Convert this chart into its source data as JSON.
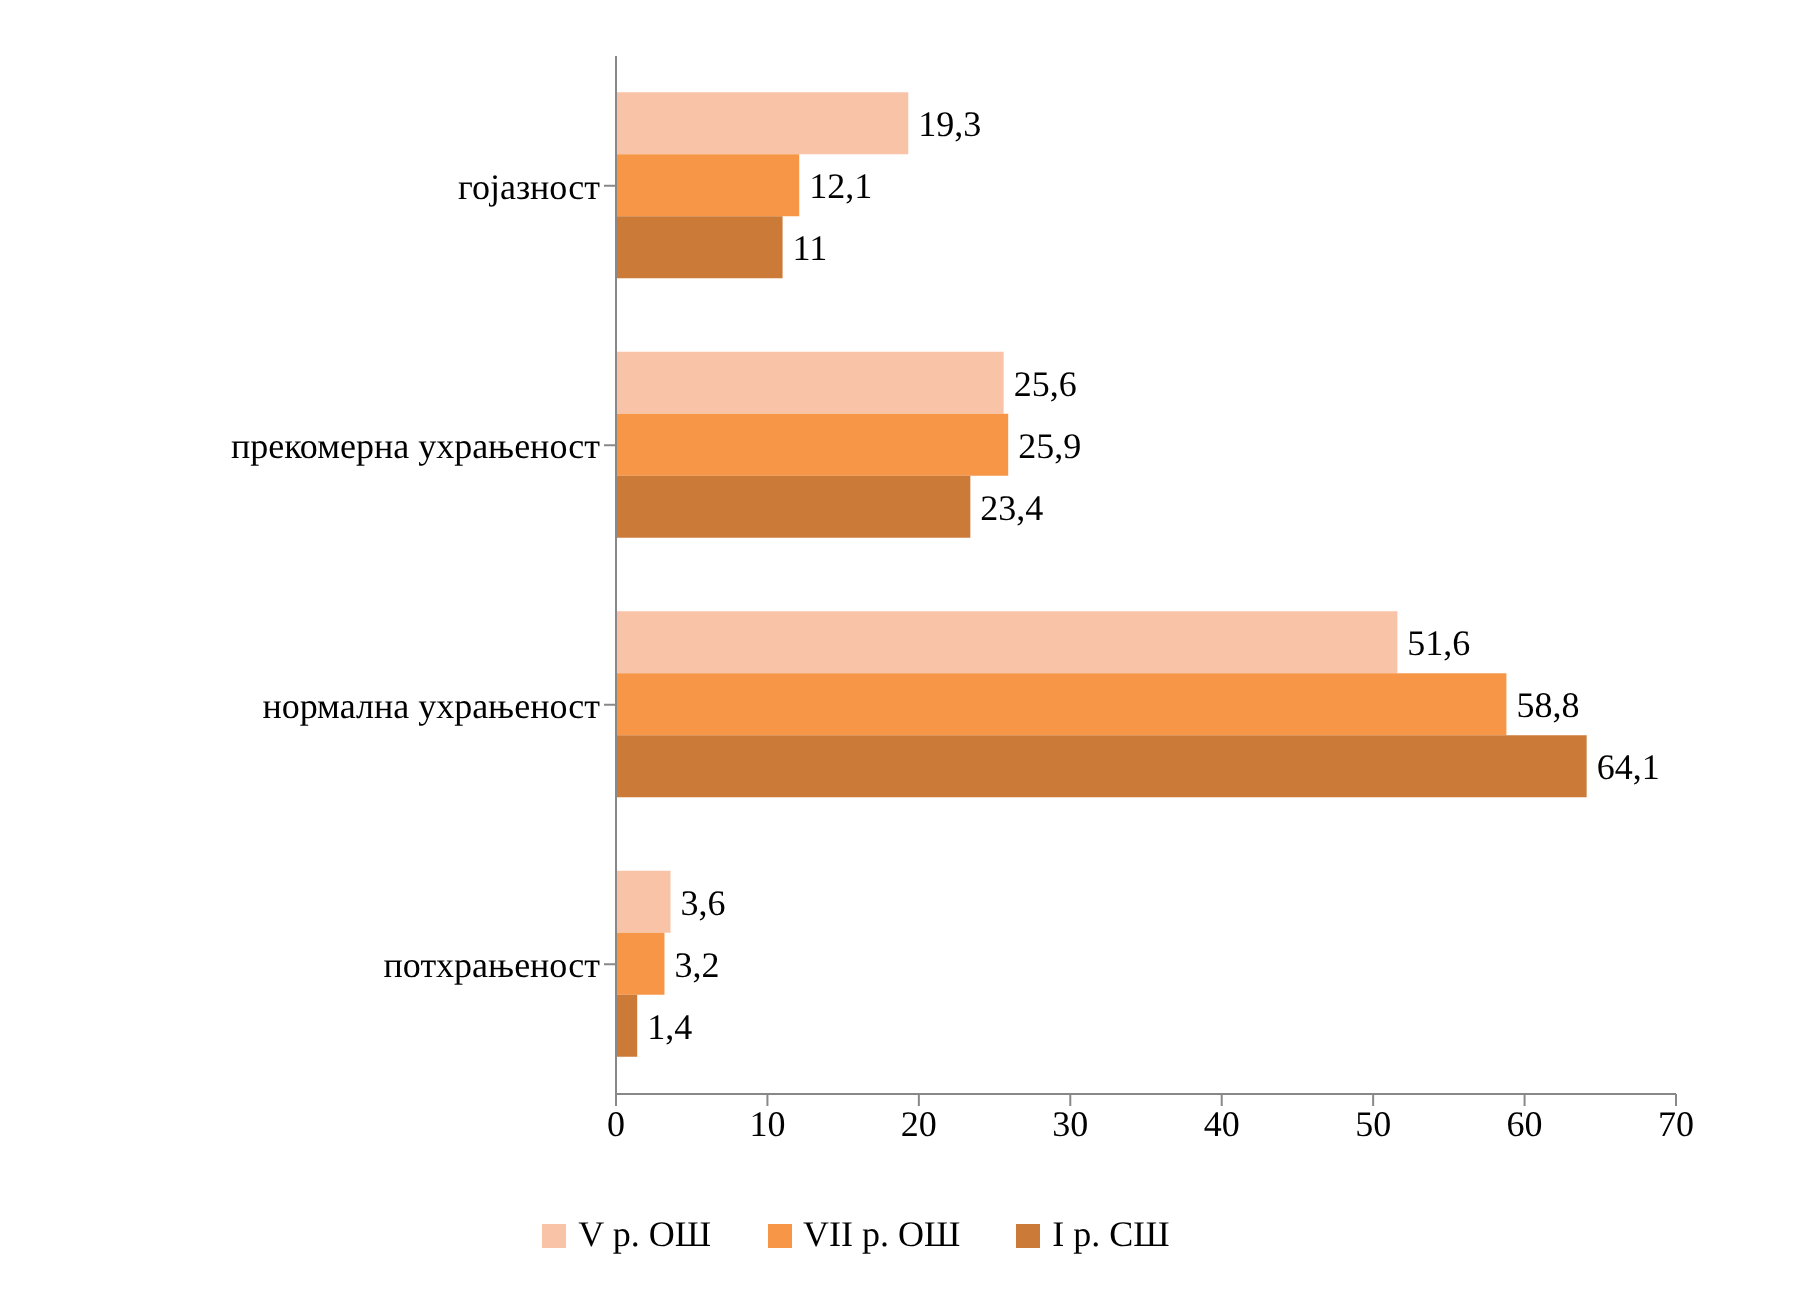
{
  "chart_data": {
    "type": "bar",
    "orientation": "horizontal",
    "categories": [
      "гојазност",
      "прекомерна ухрањеност",
      "нормална ухрањеност",
      "потхрањеност"
    ],
    "series": [
      {
        "name": "V р. ОШ",
        "color": "#f9c3a8",
        "values": [
          19.3,
          25.6,
          51.6,
          3.6
        ],
        "value_labels": [
          "19,3",
          "25,6",
          "51,6",
          "3,6"
        ]
      },
      {
        "name": "VII р. ОШ",
        "color": "#f79646",
        "values": [
          12.1,
          25.9,
          58.8,
          3.2
        ],
        "value_labels": [
          "12,1",
          "25,9",
          "58,8",
          "3,2"
        ]
      },
      {
        "name": "I р. СШ",
        "color": "#cc7a38",
        "values": [
          11,
          23.4,
          64.1,
          1.4
        ],
        "value_labels": [
          "11",
          "23,4",
          "64,1",
          "1,4"
        ]
      }
    ],
    "xlim": [
      0,
      70
    ],
    "xticks": [
      0,
      10,
      20,
      30,
      40,
      50,
      60,
      70
    ],
    "legend": "bottom"
  }
}
